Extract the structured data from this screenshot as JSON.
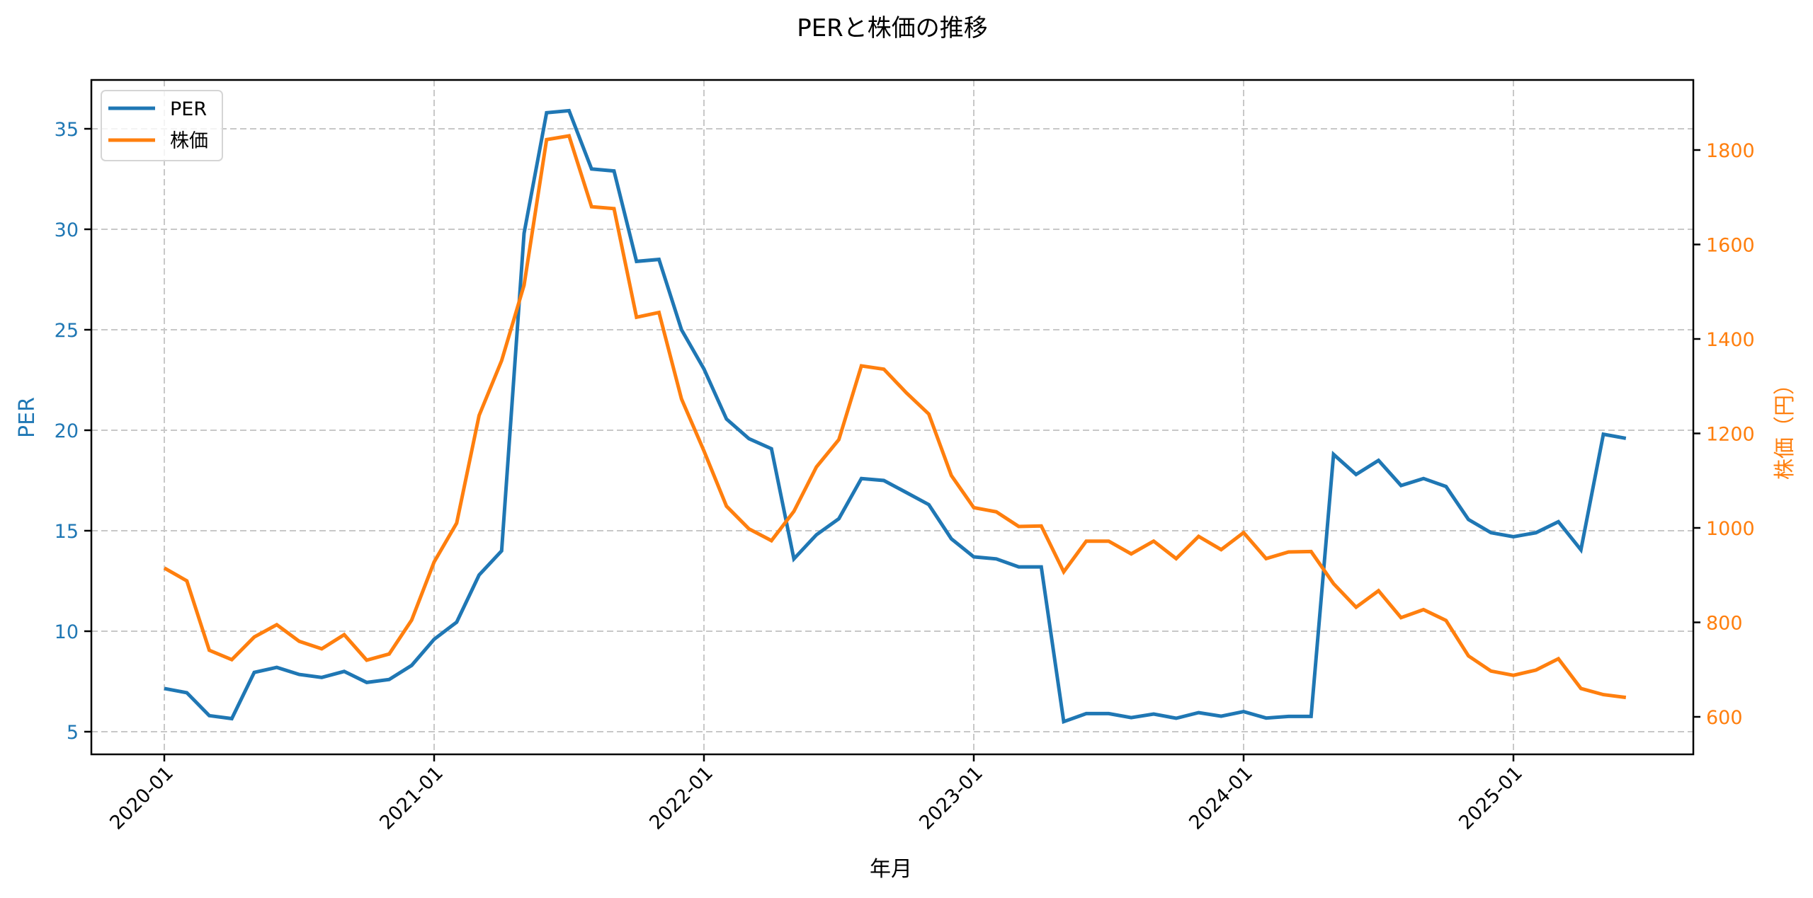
{
  "chart_data": {
    "type": "line",
    "title": "PERと株価の推移",
    "xlabel": "年月",
    "ylabel": "PER",
    "ylabel_right": "株価（円）",
    "x_tick_labels": [
      "2020-01",
      "2021-01",
      "2022-01",
      "2023-01",
      "2024-01",
      "2025-01"
    ],
    "y_ticks_left": [
      5,
      10,
      15,
      20,
      25,
      30,
      35
    ],
    "y_ticks_right": [
      600,
      800,
      1000,
      1200,
      1400,
      1600,
      1800
    ],
    "ylim": [
      3.9,
      37.4
    ],
    "ylim_right": [
      520,
      1948
    ],
    "grid": true,
    "legend_position": "upper left",
    "legend": [
      "PER",
      "株価"
    ],
    "x": [
      "2020-01",
      "2020-02",
      "2020-03",
      "2020-04",
      "2020-05",
      "2020-06",
      "2020-07",
      "2020-08",
      "2020-09",
      "2020-10",
      "2020-11",
      "2020-12",
      "2021-01",
      "2021-02",
      "2021-03",
      "2021-04",
      "2021-05",
      "2021-06",
      "2021-07",
      "2021-08",
      "2021-09",
      "2021-10",
      "2021-11",
      "2021-12",
      "2022-01",
      "2022-02",
      "2022-03",
      "2022-04",
      "2022-05",
      "2022-06",
      "2022-07",
      "2022-08",
      "2022-09",
      "2022-10",
      "2022-11",
      "2022-12",
      "2023-01",
      "2023-02",
      "2023-03",
      "2023-04",
      "2023-05",
      "2023-06",
      "2023-07",
      "2023-08",
      "2023-09",
      "2023-10",
      "2023-11",
      "2023-12",
      "2024-01",
      "2024-02",
      "2024-03",
      "2024-04",
      "2024-05",
      "2024-06",
      "2024-07",
      "2024-08",
      "2024-09",
      "2024-10",
      "2024-11",
      "2024-12",
      "2025-01",
      "2025-02",
      "2025-03",
      "2025-04",
      "2025-05",
      "2025-06"
    ],
    "series": [
      {
        "name": "PER",
        "axis": "left",
        "color": "#1f77b4",
        "values": [
          7.15,
          6.94,
          5.8,
          5.65,
          7.95,
          8.2,
          7.85,
          7.7,
          8.0,
          7.45,
          7.6,
          8.3,
          9.6,
          10.45,
          12.8,
          14.0,
          29.8,
          35.8,
          35.9,
          33.0,
          32.9,
          28.4,
          28.5,
          25.0,
          23.05,
          20.56,
          19.58,
          19.08,
          13.6,
          14.8,
          15.6,
          17.6,
          17.5,
          16.9,
          16.3,
          14.6,
          13.7,
          13.6,
          13.2,
          13.2,
          5.5,
          5.9,
          5.9,
          5.7,
          5.88,
          5.67,
          5.95,
          5.77,
          6.0,
          5.68,
          5.76,
          5.76,
          18.8,
          17.8,
          18.5,
          17.25,
          17.6,
          17.2,
          15.56,
          14.9,
          14.7,
          14.9,
          15.45,
          14.05,
          19.8,
          19.6
        ]
      },
      {
        "name": "株価",
        "axis": "right",
        "color": "#ff7f0e",
        "values": [
          915,
          888,
          741,
          721,
          769,
          795,
          760,
          744,
          774,
          720,
          733,
          805,
          928,
          1010,
          1238,
          1354,
          1514,
          1822,
          1830,
          1680,
          1676,
          1446,
          1456,
          1273,
          1163,
          1046,
          998,
          973,
          1035,
          1129,
          1187,
          1343,
          1336,
          1286,
          1241,
          1111,
          1043,
          1034,
          1003,
          1004,
          907,
          972,
          972,
          945,
          972,
          935,
          982,
          954,
          990,
          935,
          949,
          950,
          882,
          832,
          867,
          810,
          827,
          804,
          729,
          697,
          688,
          699,
          723,
          660,
          647,
          641
        ]
      }
    ]
  },
  "colors": {
    "per": "#1f77b4",
    "price": "#ff7f0e",
    "grid": "#c8c8c8"
  }
}
